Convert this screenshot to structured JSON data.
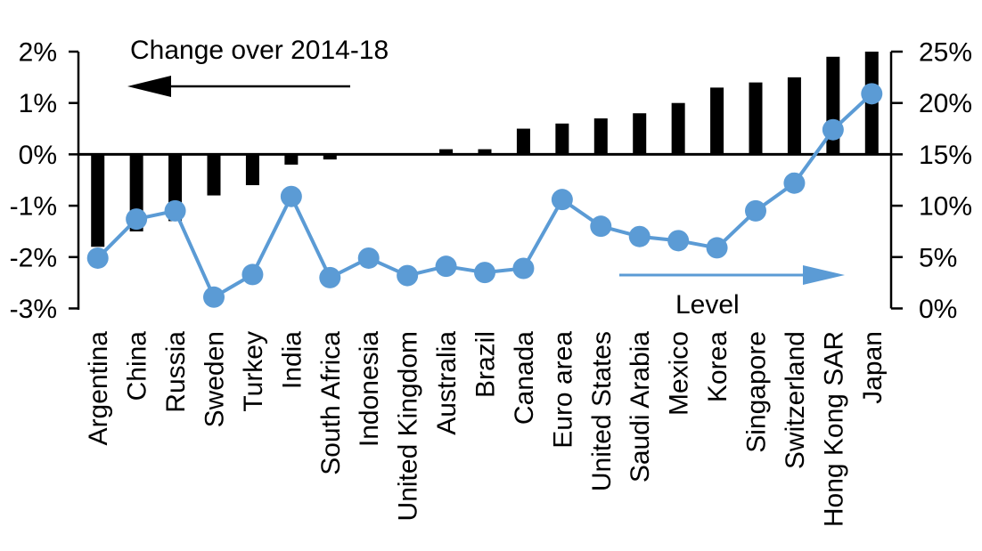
{
  "chart_data": {
    "type": "combo",
    "title": "Change over 2014-18",
    "categories": [
      "Argentina",
      "China",
      "Russia",
      "Sweden",
      "Turkey",
      "India",
      "South Africa",
      "Indonesia",
      "United Kingdom",
      "Australia",
      "Brazil",
      "Canada",
      "Euro area",
      "United States",
      "Saudi Arabia",
      "Mexico",
      "Korea",
      "Singapore",
      "Switzerland",
      "Hong Kong SAR",
      "Japan"
    ],
    "series": [
      {
        "name": "Change over 2014-18",
        "type": "bar",
        "axis": "left",
        "color": "#000000",
        "values": [
          -1.8,
          -1.5,
          -1.3,
          -0.8,
          -0.6,
          -0.2,
          -0.1,
          0,
          0,
          0.1,
          0.1,
          0.5,
          0.6,
          0.7,
          0.8,
          1.0,
          1.3,
          1.4,
          1.5,
          1.9,
          2.0
        ]
      },
      {
        "name": "Level",
        "type": "line",
        "axis": "right",
        "color": "#5B9BD5",
        "values": [
          4.9,
          8.7,
          9.5,
          1.1,
          3.3,
          10.9,
          3.0,
          4.9,
          3.2,
          4.1,
          3.5,
          3.9,
          10.6,
          8.0,
          7.0,
          6.6,
          5.9,
          9.5,
          12.2,
          17.4,
          20.9
        ]
      }
    ],
    "left_axis": {
      "tick_labels": [
        "2%",
        "1%",
        "0%",
        "-1%",
        "-2%",
        "-3%"
      ],
      "tick_values": [
        2,
        1,
        0,
        -1,
        -2,
        -3
      ],
      "max": 2,
      "min": -3
    },
    "right_axis": {
      "tick_labels": [
        "25%",
        "20%",
        "15%",
        "10%",
        "5%",
        "0%"
      ],
      "tick_values": [
        25,
        20,
        15,
        10,
        5,
        0
      ],
      "max": 25,
      "min": 0
    },
    "annotations": {
      "bar_series_label": "Change over 2014-18",
      "line_series_label": "Level"
    },
    "colors": {
      "bar": "#000000",
      "line": "#5B9BD5",
      "axis": "#000000",
      "text": "#000000",
      "background": "#FFFFFF"
    }
  }
}
